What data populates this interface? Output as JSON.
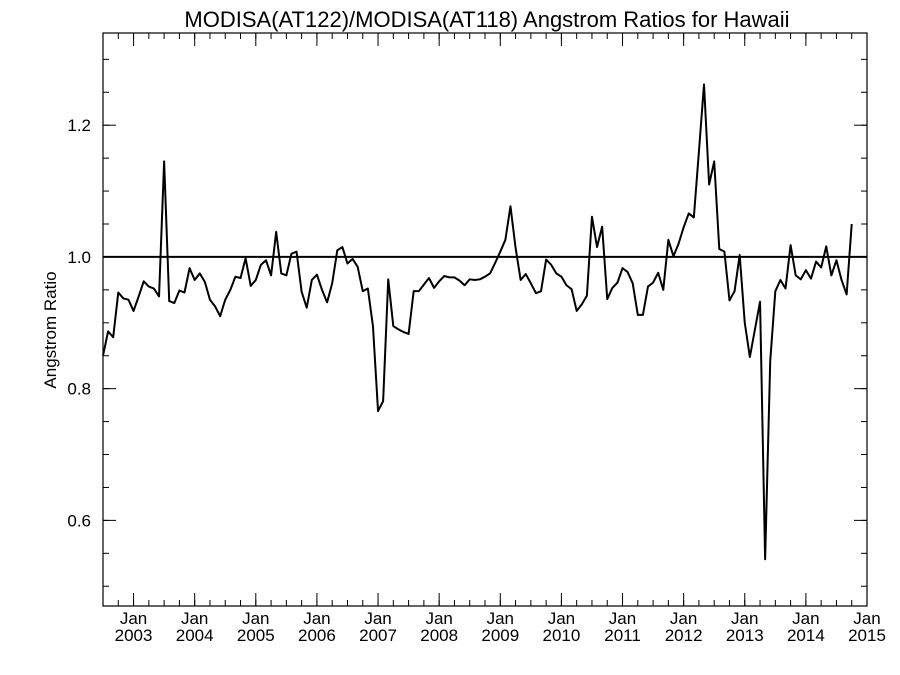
{
  "chart_data": {
    "type": "line",
    "title": "MODISA(AT122)/MODISA(AT118)  Angstrom Ratios for Hawaii",
    "xlabel": "",
    "ylabel": "Angstrom Ratio",
    "xlim": [
      2002.5,
      2015.0
    ],
    "ylim": [
      0.47,
      1.34
    ],
    "y_ticks": [
      0.6,
      0.8,
      1.0,
      1.2
    ],
    "y_tick_labels": [
      "0.6",
      "0.8",
      "1.0",
      "1.2"
    ],
    "x_ticks": [
      {
        "year": 2003,
        "month": "Jan",
        "label": "2003"
      },
      {
        "year": 2004,
        "month": "Jan",
        "label": "2004"
      },
      {
        "year": 2005,
        "month": "Jan",
        "label": "2005"
      },
      {
        "year": 2006,
        "month": "Jan",
        "label": "2006"
      },
      {
        "year": 2007,
        "month": "Jan",
        "label": "2007"
      },
      {
        "year": 2008,
        "month": "Jan",
        "label": "2008"
      },
      {
        "year": 2009,
        "month": "Jan",
        "label": "2009"
      },
      {
        "year": 2010,
        "month": "Jan",
        "label": "2010"
      },
      {
        "year": 2011,
        "month": "Jan",
        "label": "2011"
      },
      {
        "year": 2012,
        "month": "Jan",
        "label": "2012"
      },
      {
        "year": 2013,
        "month": "Jan",
        "label": "2013"
      },
      {
        "year": 2014,
        "month": "Jan",
        "label": "2014"
      },
      {
        "year": 2015,
        "month": "Jan",
        "label": "2015"
      }
    ],
    "reference_line": 1.0,
    "grid": false,
    "series": [
      {
        "start": "2002-07",
        "step": "1 month",
        "values": [
          0.85,
          0.887,
          0.878,
          0.946,
          0.937,
          0.935,
          0.918,
          0.94,
          0.963,
          0.955,
          0.952,
          0.94,
          1.145,
          0.933,
          0.93,
          0.949,
          0.946,
          0.983,
          0.965,
          0.975,
          0.962,
          0.935,
          0.925,
          0.91,
          0.935,
          0.95,
          0.97,
          0.968,
          0.998,
          0.956,
          0.965,
          0.988,
          0.995,
          0.972,
          1.038,
          0.975,
          0.972,
          1.005,
          1.008,
          0.947,
          0.923,
          0.965,
          0.973,
          0.95,
          0.931,
          0.96,
          1.01,
          1.015,
          0.99,
          0.997,
          0.985,
          0.948,
          0.952,
          0.895,
          0.766,
          0.781,
          0.966,
          0.895,
          0.89,
          0.886,
          0.883,
          0.948,
          0.948,
          0.958,
          0.968,
          0.953,
          0.963,
          0.971,
          0.969,
          0.969,
          0.964,
          0.957,
          0.966,
          0.965,
          0.966,
          0.97,
          0.975,
          0.991,
          1.008,
          1.026,
          1.077,
          1.014,
          0.965,
          0.974,
          0.96,
          0.945,
          0.948,
          0.996,
          0.988,
          0.975,
          0.97,
          0.957,
          0.951,
          0.918,
          0.928,
          0.941,
          1.061,
          1.015,
          1.046,
          0.936,
          0.953,
          0.961,
          0.983,
          0.977,
          0.96,
          0.912,
          0.912,
          0.955,
          0.961,
          0.976,
          0.95,
          1.026,
          1.001,
          1.02,
          1.045,
          1.066,
          1.06,
          1.16,
          1.262,
          1.11,
          1.145,
          1.012,
          1.008,
          0.934,
          0.948,
          1.003,
          0.9,
          0.848,
          0.89,
          0.932,
          0.541,
          0.842,
          0.948,
          0.965,
          0.952,
          1.018,
          0.972,
          0.966,
          0.98,
          0.967,
          0.993,
          0.984,
          1.016,
          0.972,
          0.995,
          0.965,
          0.943,
          1.05
        ]
      }
    ]
  }
}
